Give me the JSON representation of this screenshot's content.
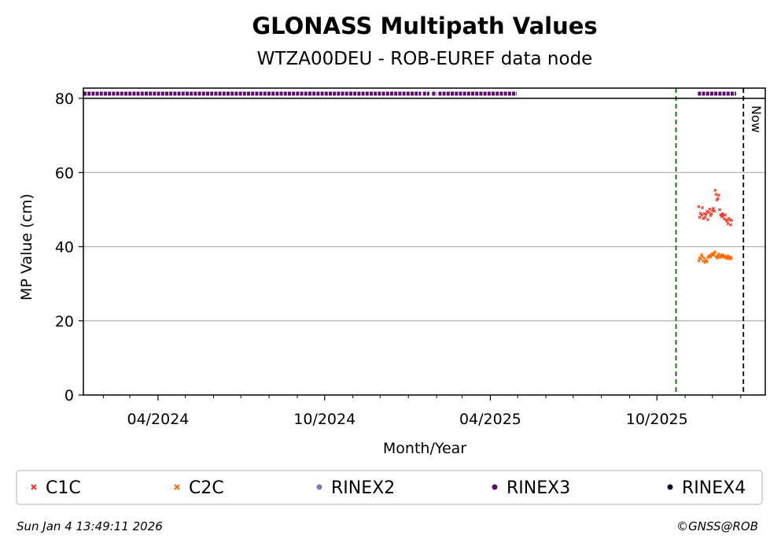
{
  "chart_data": {
    "type": "scatter",
    "title": "GLONASS Multipath Values",
    "subtitle": "WTZA00DEU - ROB-EUREF data node",
    "xlabel": "Month/Year",
    "ylabel": "MP Value (cm)",
    "ylim": [
      0,
      80
    ],
    "xlim": [
      "2024-01-10",
      "2026-01-28"
    ],
    "x_ticks": [
      {
        "date": "2024-04-01",
        "label": "04/2024"
      },
      {
        "date": "2024-10-01",
        "label": "10/2024"
      },
      {
        "date": "2025-04-01",
        "label": "04/2025"
      },
      {
        "date": "2025-10-01",
        "label": "10/2025"
      }
    ],
    "x_minor_ticks": [
      "2024-02-01",
      "2024-03-01",
      "2024-05-01",
      "2024-06-01",
      "2024-07-01",
      "2024-08-01",
      "2024-09-01",
      "2024-11-01",
      "2024-12-01",
      "2025-01-01",
      "2025-02-01",
      "2025-03-01",
      "2025-05-01",
      "2025-06-01",
      "2025-07-01",
      "2025-08-01",
      "2025-09-01",
      "2025-11-01",
      "2025-12-01",
      "2026-01-01"
    ],
    "y_ticks": [
      0,
      20,
      40,
      60,
      80
    ],
    "grid": "horizontal",
    "reference_lines": [
      {
        "date": "2025-10-22",
        "color": "#007000",
        "style": "dashed"
      },
      {
        "date": "2026-01-04",
        "color": "#000000",
        "style": "dashed",
        "label": "Now"
      }
    ],
    "availability_band": {
      "series": "RINEX3",
      "segments": [
        [
          "2024-01-10",
          "2025-01-15"
        ],
        [
          "2025-01-17",
          "2025-01-24"
        ],
        [
          "2025-01-27",
          "2025-02-01"
        ],
        [
          "2025-02-03",
          "2025-04-30"
        ],
        [
          "2025-11-15",
          "2025-12-27"
        ]
      ]
    },
    "series": [
      {
        "name": "C1C",
        "color": "#ee3322",
        "marker": "x",
        "points": [
          [
            "2025-11-16",
            50.8
          ],
          [
            "2025-11-17",
            47.9
          ],
          [
            "2025-11-18",
            49.0
          ],
          [
            "2025-11-19",
            48.5
          ],
          [
            "2025-11-20",
            50.5
          ],
          [
            "2025-11-21",
            47.6
          ],
          [
            "2025-11-22",
            48.9
          ],
          [
            "2025-11-23",
            47.9
          ],
          [
            "2025-11-24",
            48.7
          ],
          [
            "2025-11-25",
            49.5
          ],
          [
            "2025-11-26",
            47.3
          ],
          [
            "2025-11-27",
            49.2
          ],
          [
            "2025-11-28",
            50.1
          ],
          [
            "2025-11-29",
            48.4
          ],
          [
            "2025-11-30",
            48.9
          ],
          [
            "2025-12-01",
            49.8
          ],
          [
            "2025-12-02",
            50.3
          ],
          [
            "2025-12-03",
            49.6
          ],
          [
            "2025-12-04",
            55.2
          ],
          [
            "2025-12-05",
            54.1
          ],
          [
            "2025-12-06",
            52.6
          ],
          [
            "2025-12-07",
            53.0
          ],
          [
            "2025-12-08",
            53.9
          ],
          [
            "2025-12-09",
            50.0
          ],
          [
            "2025-12-10",
            48.6
          ],
          [
            "2025-12-11",
            48.1
          ],
          [
            "2025-12-12",
            48.9
          ],
          [
            "2025-12-13",
            48.3
          ],
          [
            "2025-12-14",
            47.5
          ],
          [
            "2025-12-15",
            48.6
          ],
          [
            "2025-12-16",
            47.2
          ],
          [
            "2025-12-17",
            46.9
          ],
          [
            "2025-12-18",
            46.2
          ],
          [
            "2025-12-19",
            47.6
          ],
          [
            "2025-12-20",
            47.3
          ],
          [
            "2025-12-21",
            45.9
          ],
          [
            "2025-12-22",
            47.1
          ]
        ]
      },
      {
        "name": "C2C",
        "color": "#ff6600",
        "marker": "x",
        "points": [
          [
            "2025-11-16",
            36.2
          ],
          [
            "2025-11-17",
            37.0
          ],
          [
            "2025-11-18",
            36.6
          ],
          [
            "2025-11-19",
            37.8
          ],
          [
            "2025-11-20",
            37.3
          ],
          [
            "2025-11-21",
            36.1
          ],
          [
            "2025-11-22",
            36.9
          ],
          [
            "2025-11-23",
            35.8
          ],
          [
            "2025-11-24",
            36.4
          ],
          [
            "2025-11-25",
            36.0
          ],
          [
            "2025-11-26",
            37.1
          ],
          [
            "2025-11-27",
            37.4
          ],
          [
            "2025-11-28",
            37.6
          ],
          [
            "2025-11-29",
            37.2
          ],
          [
            "2025-11-30",
            37.9
          ],
          [
            "2025-12-01",
            38.1
          ],
          [
            "2025-12-02",
            37.7
          ],
          [
            "2025-12-03",
            38.3
          ],
          [
            "2025-12-04",
            38.6
          ],
          [
            "2025-12-05",
            37.4
          ],
          [
            "2025-12-06",
            36.9
          ],
          [
            "2025-12-07",
            37.5
          ],
          [
            "2025-12-08",
            38.0
          ],
          [
            "2025-12-09",
            37.1
          ],
          [
            "2025-12-10",
            37.6
          ],
          [
            "2025-12-11",
            37.3
          ],
          [
            "2025-12-12",
            37.8
          ],
          [
            "2025-12-13",
            37.2
          ],
          [
            "2025-12-14",
            37.6
          ],
          [
            "2025-12-15",
            37.0
          ],
          [
            "2025-12-16",
            37.3
          ],
          [
            "2025-12-17",
            36.8
          ],
          [
            "2025-12-18",
            37.5
          ],
          [
            "2025-12-19",
            37.1
          ],
          [
            "2025-12-20",
            36.7
          ],
          [
            "2025-12-21",
            37.2
          ],
          [
            "2025-12-22",
            36.9
          ]
        ]
      }
    ],
    "legend": [
      {
        "label": "C1C",
        "color": "#ee3322",
        "marker": "x"
      },
      {
        "label": "C2C",
        "color": "#ff6600",
        "marker": "x"
      },
      {
        "label": "RINEX2",
        "color": "#7b78b8",
        "marker": "dot"
      },
      {
        "label": "RINEX3",
        "color": "#5c0a6e",
        "marker": "dot"
      },
      {
        "label": "RINEX4",
        "color": "#1a0020",
        "marker": "dot"
      }
    ],
    "legend_placement": "bottom"
  },
  "footer": {
    "timestamp": "Sun Jan  4 13:49:11 2026",
    "credit": "©GNSS@ROB"
  }
}
